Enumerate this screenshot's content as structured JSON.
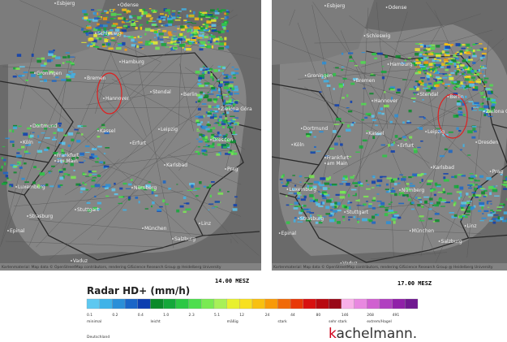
{
  "cities": [
    "Esbjerg",
    "Odense",
    "Schleswig",
    "Hamburg",
    "Bremen",
    "Groningen",
    "Hannover",
    "Stendal",
    "Berlin",
    "Dortmund",
    "Kassel",
    "Leipzig",
    "Köln",
    "Erfurt",
    "Dresden",
    "Frankfurt",
    "am Main",
    "Karlsbad",
    "Prag",
    "Luxemburg",
    "Nürnberg",
    "Stuttgart",
    "Strasburg",
    "München",
    "Linz",
    "Salzburg",
    "Vaduz",
    "Epinal",
    "Zielona Góra"
  ],
  "attribution": "Kartenmaterial: Map data © OpenStreetMap contributors, rendering GIScience Research Group @ Heidelberg University",
  "panels": [
    {
      "time": "14.00 MESZ"
    },
    {
      "time": "17.00 MESZ"
    }
  ],
  "legend": {
    "title": "Radar HD+ (mm/h)",
    "scale": [
      "0.1",
      "0.2",
      "0.4",
      "1.0",
      "2.3",
      "5.1",
      "12",
      "24",
      "44",
      "80",
      "146",
      "268",
      "491"
    ],
    "categories": [
      "minimal",
      "leicht",
      "mäßig",
      "stark",
      "sehr stark",
      "extrem/Hagel"
    ],
    "region": "Deutschland"
  },
  "brand": {
    "first": "k",
    "rest": "achelmann."
  }
}
